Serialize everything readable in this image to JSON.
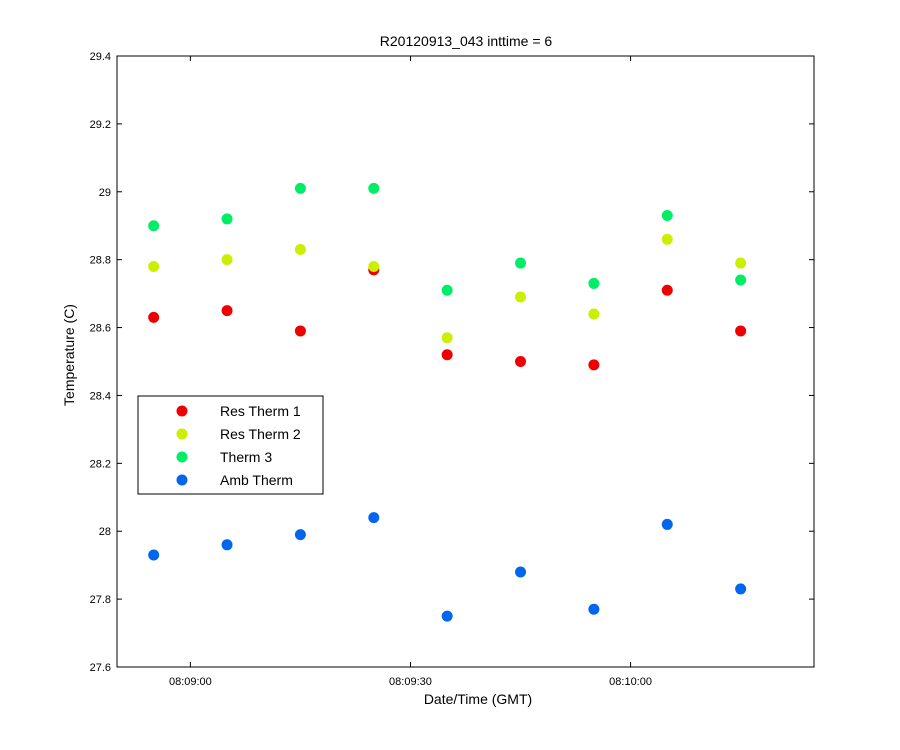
{
  "chart_data": {
    "type": "scatter",
    "title": "R20120913_043 inttime = 6",
    "xlabel": "Date/Time (GMT)",
    "ylabel": "Temperature (C)",
    "x_unit": "time",
    "xlim": [
      "08:08:50",
      "08:10:25"
    ],
    "ylim": [
      27.6,
      29.4
    ],
    "x_ticks": [
      "08:09:00",
      "08:09:30",
      "08:10:00"
    ],
    "y_ticks": [
      "27.6",
      "27.8",
      "28",
      "28.2",
      "28.4",
      "28.6",
      "28.8",
      "29",
      "29.2",
      "29.4"
    ],
    "grid": false,
    "legend_position": "middle-left",
    "x": [
      "08:08:55",
      "08:09:05",
      "08:09:15",
      "08:09:25",
      "08:09:35",
      "08:09:45",
      "08:09:55",
      "08:10:05",
      "08:10:15"
    ],
    "series": [
      {
        "name": "Res Therm 1",
        "color": "#ee0000",
        "values": [
          28.63,
          28.65,
          28.59,
          28.77,
          28.52,
          28.5,
          28.49,
          28.71,
          28.59
        ]
      },
      {
        "name": "Res Therm 2",
        "color": "#ccee00",
        "values": [
          28.78,
          28.8,
          28.83,
          28.78,
          28.57,
          28.69,
          28.64,
          28.86,
          28.79
        ]
      },
      {
        "name": "Therm 3",
        "color": "#00ee66",
        "values": [
          28.9,
          28.92,
          29.01,
          29.01,
          28.71,
          28.79,
          28.73,
          28.93,
          28.74
        ]
      },
      {
        "name": "Amb Therm",
        "color": "#0066ee",
        "values": [
          27.93,
          27.96,
          27.99,
          28.04,
          27.75,
          27.88,
          27.77,
          28.02,
          27.83
        ]
      }
    ]
  }
}
